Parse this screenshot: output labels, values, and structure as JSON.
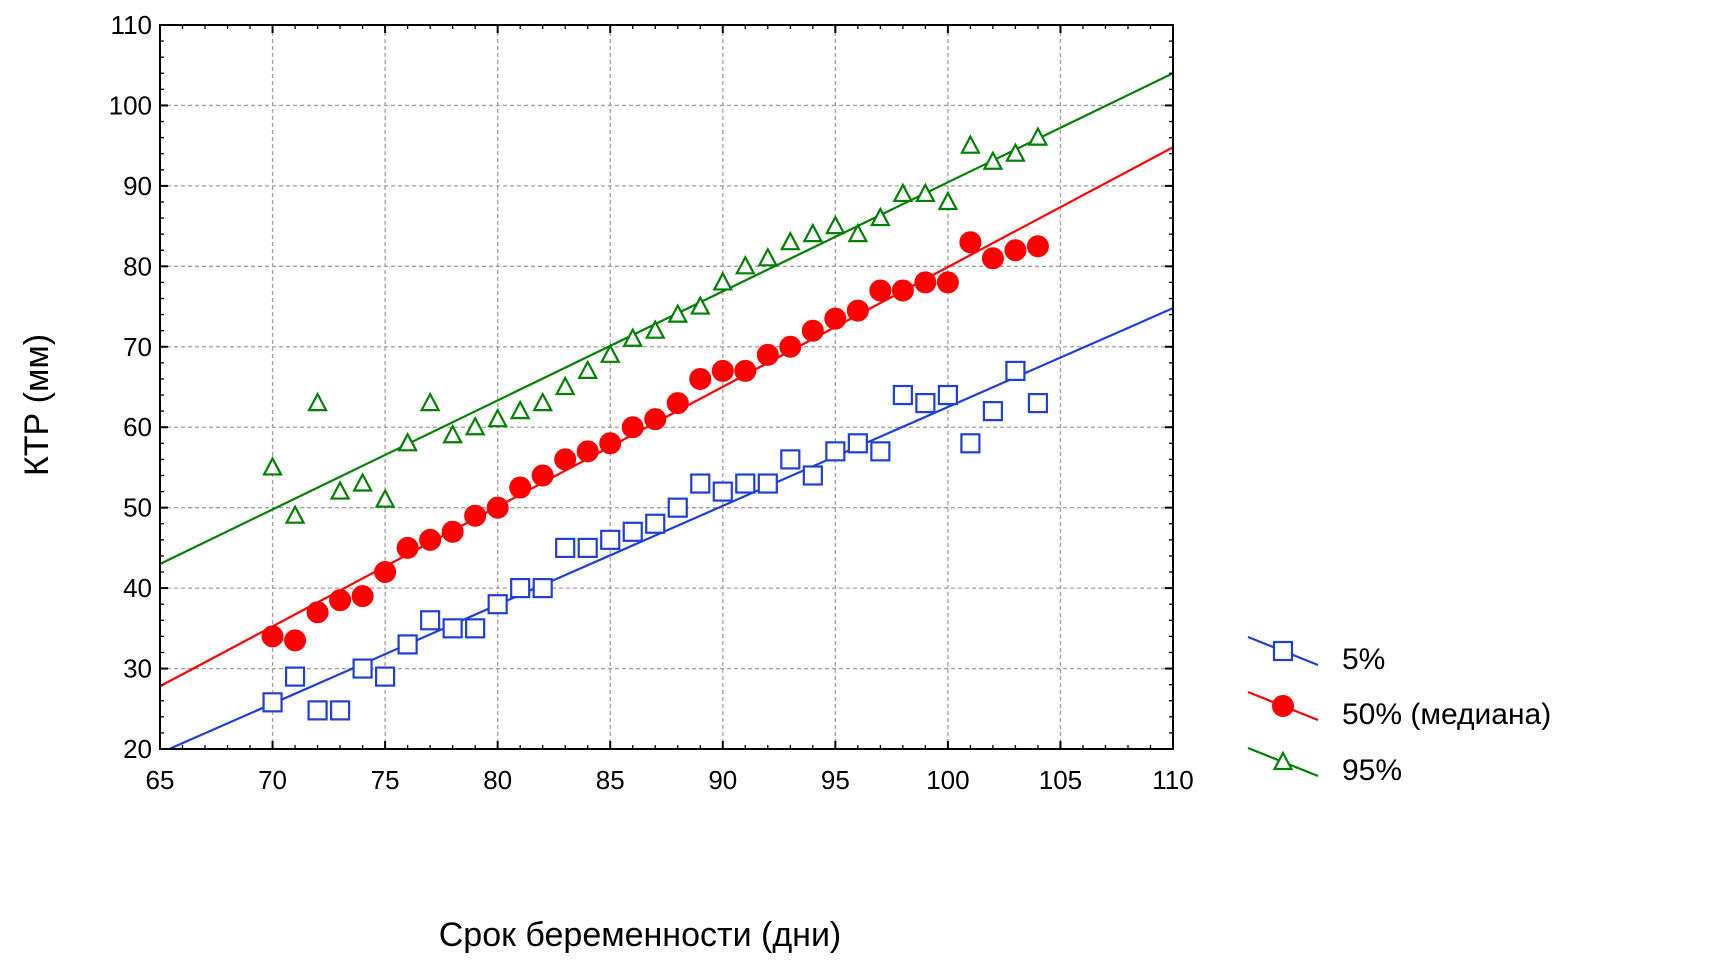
{
  "chart_data": {
    "type": "scatter",
    "xlabel": "Срок беременности (дни)",
    "ylabel": "КТР (мм)",
    "xlim": [
      65,
      110
    ],
    "ylim": [
      20,
      110
    ],
    "xticks": [
      65,
      70,
      75,
      80,
      85,
      90,
      95,
      100,
      105,
      110
    ],
    "yticks": [
      20,
      30,
      40,
      50,
      60,
      70,
      80,
      90,
      100,
      110
    ],
    "grid": true,
    "legend_position": "bottom-right",
    "series": [
      {
        "name": "5%",
        "marker": "square",
        "color": "#1f3fd6",
        "x": [
          70,
          71,
          72,
          73,
          74,
          75,
          76,
          77,
          78,
          79,
          80,
          81,
          82,
          83,
          84,
          85,
          86,
          87,
          88,
          89,
          90,
          91,
          92,
          93,
          94,
          95,
          96,
          97,
          98,
          99,
          100,
          101,
          102,
          103,
          104
        ],
        "y": [
          25.8,
          29,
          24.8,
          24.8,
          30,
          29,
          33,
          36,
          35,
          35,
          38,
          40,
          40,
          45,
          45,
          46,
          47,
          48,
          50,
          53,
          52,
          53,
          53,
          56,
          54,
          57,
          58,
          57,
          64,
          63,
          64,
          58,
          62,
          67,
          63
        ],
        "fit": {
          "x": [
            65,
            110
          ],
          "y": [
            19.5,
            74.8
          ]
        }
      },
      {
        "name": "50% (медиана)",
        "marker": "circle",
        "color": "#ff0000",
        "x": [
          70,
          71,
          72,
          73,
          74,
          75,
          76,
          77,
          78,
          79,
          80,
          81,
          82,
          83,
          84,
          85,
          86,
          87,
          88,
          89,
          90,
          91,
          92,
          93,
          94,
          95,
          96,
          97,
          98,
          99,
          100,
          101,
          102,
          103,
          104
        ],
        "y": [
          34,
          33.5,
          37,
          38.5,
          39,
          42,
          45,
          46,
          47,
          49,
          50,
          52.5,
          54,
          56,
          57,
          58,
          60,
          61,
          63,
          66,
          67,
          67,
          69,
          70,
          72,
          73.5,
          74.5,
          77,
          77,
          78,
          78,
          83,
          81,
          82,
          82.5
        ],
        "fit": {
          "x": [
            65,
            110
          ],
          "y": [
            27.8,
            94.8
          ]
        }
      },
      {
        "name": "95%",
        "marker": "triangle",
        "color": "#008000",
        "x": [
          70,
          71,
          72,
          73,
          74,
          75,
          76,
          77,
          78,
          79,
          80,
          81,
          82,
          83,
          84,
          85,
          86,
          87,
          88,
          89,
          90,
          91,
          92,
          93,
          94,
          95,
          96,
          97,
          98,
          99,
          100,
          101,
          102,
          103,
          104
        ],
        "y": [
          55,
          49,
          63,
          52,
          53,
          51,
          58,
          63,
          59,
          60,
          61,
          62,
          63,
          65,
          67,
          69,
          71,
          72,
          74,
          75,
          78,
          80,
          81,
          83,
          84,
          85,
          84,
          86,
          89,
          89,
          88,
          95,
          93,
          94,
          96
        ],
        "fit": {
          "x": [
            65,
            110
          ],
          "y": [
            43,
            104
          ]
        }
      }
    ]
  }
}
